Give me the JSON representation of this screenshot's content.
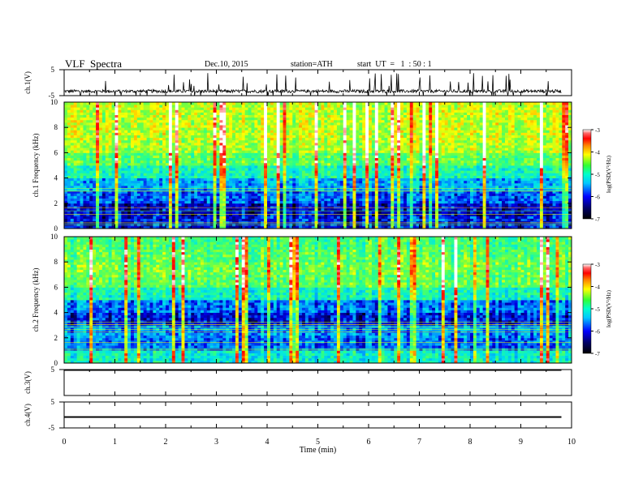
{
  "header": {
    "title": "VLF  Spectra",
    "date": "Dec.10, 2015",
    "station": "station=ATH",
    "start": "start  UT  =   1  : 50 : 1"
  },
  "colors": {
    "trace": "#000000",
    "axis": "#000000"
  },
  "chart_data": [
    {
      "type": "line",
      "panel": "ch1-waveform",
      "ylabel": "ch.1(V)",
      "yticks": [
        "5",
        "-5"
      ],
      "ylim": [
        -5,
        5
      ],
      "xlim": [
        0,
        10
      ],
      "series_summary": {
        "baseline": -3.3,
        "min": -5,
        "max": 5,
        "data_extent_min": 9.8
      }
    },
    {
      "type": "heatmap",
      "panel": "ch1-spectrogram",
      "ylabel": "ch.1  Frequency  (kHz)",
      "yticks": [
        "0",
        "2",
        "4",
        "6",
        "8",
        "10"
      ],
      "ylim": [
        0,
        10
      ],
      "xlim": [
        0,
        10
      ],
      "colorbar": {
        "label": "log(PSD(V²/Hz)",
        "ticks": [
          "-3",
          "-4",
          "-5",
          "-6",
          "-7"
        ],
        "range": [
          -7,
          -3
        ]
      },
      "frequency_profile_khz": [
        {
          "f": 0.5,
          "log_psd": -6.6
        },
        {
          "f": 1.5,
          "log_psd": -6.7
        },
        {
          "f": 2.5,
          "log_psd": -6.4
        },
        {
          "f": 3.5,
          "log_psd": -6.1
        },
        {
          "f": 4.5,
          "log_psd": -5.6
        },
        {
          "f": 5.5,
          "log_psd": -5.2
        },
        {
          "f": 6.5,
          "log_psd": -4.9
        },
        {
          "f": 7.5,
          "log_psd": -4.8
        },
        {
          "f": 8.5,
          "log_psd": -4.8
        },
        {
          "f": 9.5,
          "log_psd": -4.8
        }
      ]
    },
    {
      "type": "heatmap",
      "panel": "ch2-spectrogram",
      "ylabel": "ch.2  Frequency  (kHz)",
      "yticks": [
        "0",
        "2",
        "4",
        "6",
        "8",
        "10"
      ],
      "ylim": [
        0,
        10
      ],
      "xlim": [
        0,
        10
      ],
      "colorbar": {
        "label": "log(PSD(V²/Hz)",
        "ticks": [
          "-3",
          "-4",
          "-5",
          "-6",
          "-7"
        ],
        "range": [
          -7,
          -3
        ]
      },
      "frequency_profile_khz": [
        {
          "f": 0.5,
          "log_psd": -5.7
        },
        {
          "f": 1.5,
          "log_psd": -6.3
        },
        {
          "f": 2.5,
          "log_psd": -6.2
        },
        {
          "f": 3.5,
          "log_psd": -6.6
        },
        {
          "f": 4.5,
          "log_psd": -6.3
        },
        {
          "f": 5.5,
          "log_psd": -5.6
        },
        {
          "f": 6.5,
          "log_psd": -5.2
        },
        {
          "f": 7.5,
          "log_psd": -5.1
        },
        {
          "f": 8.5,
          "log_psd": -5.2
        },
        {
          "f": 9.5,
          "log_psd": -5.3
        }
      ]
    },
    {
      "type": "line",
      "panel": "ch3-waveform",
      "ylabel": "ch.3(V)",
      "yticks": [
        "5"
      ],
      "ylim": [
        -5,
        5
      ],
      "xlim": [
        0,
        10
      ],
      "series_summary": {
        "baseline": 5
      }
    },
    {
      "type": "line",
      "panel": "ch4-waveform",
      "ylabel": "ch.4(V)",
      "yticks": [
        "5",
        "-5"
      ],
      "ylim": [
        -5,
        5
      ],
      "xlim": [
        0,
        10
      ],
      "xlabel": "Time  (min)",
      "xticks": [
        "0",
        "1",
        "2",
        "3",
        "4",
        "5",
        "6",
        "7",
        "8",
        "9",
        "10"
      ],
      "series_summary": {
        "baseline": -0.8,
        "noise": 0.3
      }
    }
  ]
}
